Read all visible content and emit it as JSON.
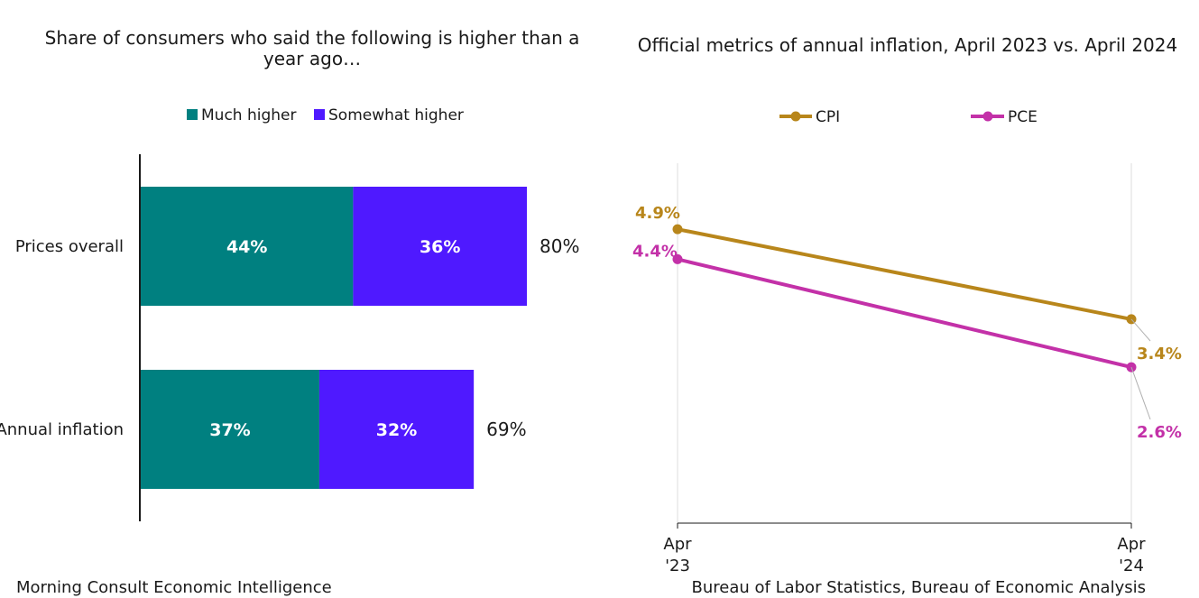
{
  "chart_data": [
    {
      "type": "bar",
      "orientation": "horizontal",
      "stacked": true,
      "title": "Share of consumers who said the following is higher than a year ago…",
      "title_lines": [
        "Share of consumers who said the following is higher than a",
        "year ago…"
      ],
      "categories": [
        "Prices overall",
        "Annual inflation"
      ],
      "series": [
        {
          "name": "Much higher",
          "values": [
            44,
            37
          ],
          "labels": [
            "44%",
            "37%"
          ],
          "color": "#008080"
        },
        {
          "name": "Somewhat higher",
          "values": [
            36,
            32
          ],
          "labels": [
            "36%",
            "32%"
          ],
          "color": "#4f19ff"
        }
      ],
      "totals": [
        80,
        69
      ],
      "total_labels": [
        "80%",
        "69%"
      ],
      "xlim": [
        0,
        100
      ],
      "legend_position": "top",
      "grid": false,
      "source": "Morning Consult Economic Intelligence"
    },
    {
      "type": "line",
      "title": "Official metrics of annual inflation, April 2023 vs. April 2024",
      "x": [
        "Apr '23",
        "Apr '24"
      ],
      "x_tick_lines": [
        [
          "Apr",
          "'23"
        ],
        [
          "Apr",
          "'24"
        ]
      ],
      "series": [
        {
          "name": "CPI",
          "values": [
            4.9,
            3.4
          ],
          "labels": [
            "4.9%",
            "3.4%"
          ],
          "color": "#b8861b"
        },
        {
          "name": "PCE",
          "values": [
            4.4,
            2.6
          ],
          "labels": [
            "4.4%",
            "2.6%"
          ],
          "color": "#c331a8"
        }
      ],
      "ylim": [
        0,
        6
      ],
      "legend_position": "top",
      "grid": true,
      "source": "Bureau of Labor Statistics, Bureau of Economic Analysis"
    }
  ]
}
